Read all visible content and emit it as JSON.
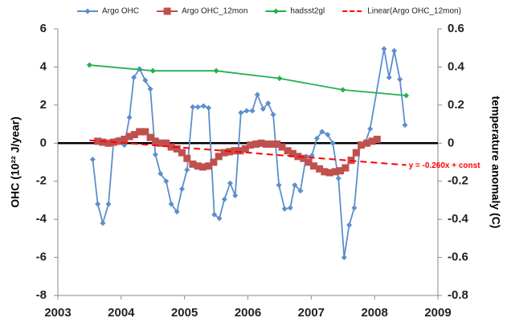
{
  "chart_data": {
    "type": "line",
    "ylabel": "OHC (10²² J/year)",
    "y2label": "temperature anomaly (C)",
    "xlim": [
      2003,
      2009
    ],
    "xticks": [
      2003,
      2004,
      2005,
      2006,
      2007,
      2008,
      2009
    ],
    "ylim": [
      -8,
      6
    ],
    "yticks": [
      -8,
      -6,
      -4,
      -2,
      0,
      2,
      4,
      6
    ],
    "y2lim": [
      -0.8,
      0.6
    ],
    "y2ticks": [
      -0.8,
      -0.6,
      -0.4,
      -0.2,
      0,
      0.2,
      0.4,
      0.6
    ],
    "zero_line": true,
    "grid": false,
    "legend": "top",
    "annotation": "y = -0.260x + const",
    "series": [
      {
        "name": "Argo OHC",
        "color": "#5b8fcc",
        "marker": "diamond",
        "x": [
          2003.55,
          2003.63,
          2003.71,
          2003.8,
          2003.88,
          2003.96,
          2004.05,
          2004.13,
          2004.2,
          2004.29,
          2004.38,
          2004.46,
          2004.54,
          2004.62,
          2004.71,
          2004.79,
          2004.88,
          2004.96,
          2005.04,
          2005.13,
          2005.21,
          2005.3,
          2005.38,
          2005.47,
          2005.55,
          2005.63,
          2005.72,
          2005.8,
          2005.89,
          2005.98,
          2006.07,
          2006.15,
          2006.24,
          2006.32,
          2006.4,
          2006.49,
          2006.58,
          2006.67,
          2006.74,
          2006.83,
          2006.92,
          2007.01,
          2007.09,
          2007.17,
          2007.26,
          2007.34,
          2007.43,
          2007.52,
          2007.6,
          2007.68,
          2007.77,
          2007.85,
          2007.93,
          2008.15,
          2008.23,
          2008.31,
          2008.4,
          2008.48
        ],
        "values": [
          -0.85,
          -3.2,
          -4.2,
          -3.2,
          0.1,
          0.2,
          -0.1,
          1.35,
          3.45,
          3.9,
          3.3,
          2.85,
          -0.6,
          -1.6,
          -2.0,
          -3.2,
          -3.6,
          -2.4,
          -1.4,
          1.9,
          1.9,
          1.95,
          1.85,
          -3.75,
          -3.95,
          -2.95,
          -2.1,
          -2.75,
          1.6,
          1.7,
          1.7,
          2.55,
          1.8,
          2.1,
          1.5,
          -2.2,
          -3.45,
          -3.4,
          -2.2,
          -2.5,
          -0.7,
          -0.65,
          0.25,
          0.6,
          0.45,
          0,
          -1.85,
          -6.0,
          -4.3,
          -3.4,
          -0.05,
          0,
          0.75,
          4.95,
          3.45,
          4.85,
          3.35,
          0.95
        ]
      },
      {
        "name": "Argo OHC_12mon",
        "color": "#c0504d",
        "marker": "square",
        "x": [
          2003.63,
          2003.71,
          2003.8,
          2003.88,
          2003.96,
          2004.05,
          2004.13,
          2004.21,
          2004.29,
          2004.38,
          2004.46,
          2004.54,
          2004.63,
          2004.71,
          2004.79,
          2004.88,
          2004.96,
          2005.04,
          2005.13,
          2005.21,
          2005.29,
          2005.38,
          2005.46,
          2005.54,
          2005.63,
          2005.71,
          2005.79,
          2005.88,
          2005.96,
          2006.04,
          2006.13,
          2006.21,
          2006.29,
          2006.38,
          2006.46,
          2006.54,
          2006.63,
          2006.71,
          2006.79,
          2006.88,
          2006.96,
          2007.04,
          2007.13,
          2007.21,
          2007.29,
          2007.38,
          2007.46,
          2007.54,
          2007.63,
          2007.71,
          2007.79,
          2007.88,
          2007.96,
          2008.04
        ],
        "values": [
          0.1,
          0.05,
          0,
          0.05,
          0.1,
          0.2,
          0.35,
          0.45,
          0.6,
          0.6,
          0.3,
          0.1,
          0,
          0,
          -0.2,
          -0.3,
          -0.5,
          -0.8,
          -1.1,
          -1.2,
          -1.25,
          -1.2,
          -1.0,
          -0.7,
          -0.5,
          -0.45,
          -0.4,
          -0.4,
          -0.3,
          -0.1,
          -0.05,
          0,
          -0.05,
          -0.05,
          -0.05,
          -0.2,
          -0.4,
          -0.55,
          -0.7,
          -0.8,
          -1.0,
          -1.2,
          -1.35,
          -1.5,
          -1.55,
          -1.5,
          -1.45,
          -1.3,
          -0.9,
          -0.5,
          -0.1,
          0,
          0.1,
          0.2
        ]
      },
      {
        "name": "hadsst2gl",
        "color": "#22b14c",
        "marker": "diamond",
        "axis": "y2",
        "x": [
          2003.5,
          2004.5,
          2005.5,
          2006.5,
          2007.5,
          2008.5
        ],
        "values": [
          0.41,
          0.38,
          0.38,
          0.34,
          0.28,
          0.25
        ]
      },
      {
        "name": "Linear(Argo OHC_12mon)",
        "color": "#ff0000",
        "marker": "none",
        "dashed": true,
        "x": [
          2003.5,
          2008.5
        ],
        "values": [
          0.15,
          -1.15
        ]
      }
    ]
  }
}
